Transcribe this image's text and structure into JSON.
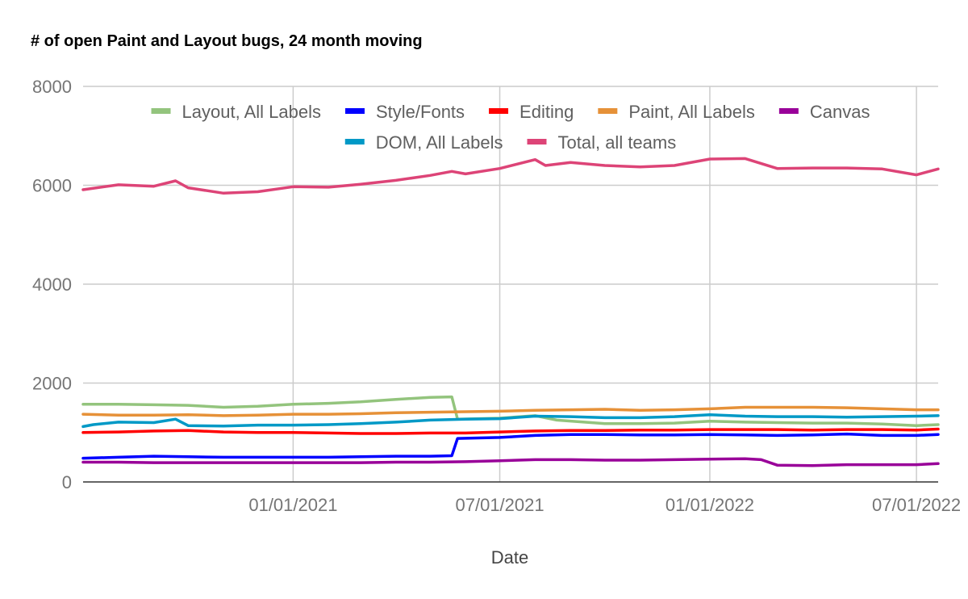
{
  "chart_data": {
    "type": "line",
    "title": "# of open Paint and Layout bugs, 24 month moving",
    "xlabel": "Date",
    "ylabel": "",
    "ylim": [
      0,
      8000
    ],
    "yticks": [
      0,
      2000,
      4000,
      6000,
      8000
    ],
    "xlim": [
      "2020-07-01",
      "2022-07-20"
    ],
    "xticks": [
      {
        "date": "2021-01-01",
        "label": "01/01/2021"
      },
      {
        "date": "2021-07-01",
        "label": "07/01/2021"
      },
      {
        "date": "2022-01-01",
        "label": "01/01/2022"
      },
      {
        "date": "2022-07-01",
        "label": "07/01/2022"
      }
    ],
    "grid": true,
    "legend_position": "top",
    "series": [
      {
        "name": "Layout, All Labels",
        "color": "#93c47d",
        "points": [
          [
            "2020-07-01",
            1570
          ],
          [
            "2020-08-01",
            1570
          ],
          [
            "2020-09-01",
            1560
          ],
          [
            "2020-10-01",
            1550
          ],
          [
            "2020-11-01",
            1510
          ],
          [
            "2020-12-01",
            1530
          ],
          [
            "2021-01-01",
            1570
          ],
          [
            "2021-02-01",
            1590
          ],
          [
            "2021-03-01",
            1620
          ],
          [
            "2021-04-01",
            1670
          ],
          [
            "2021-05-01",
            1710
          ],
          [
            "2021-05-20",
            1720
          ],
          [
            "2021-05-25",
            1270
          ],
          [
            "2021-07-01",
            1290
          ],
          [
            "2021-08-01",
            1340
          ],
          [
            "2021-08-20",
            1250
          ],
          [
            "2021-10-01",
            1180
          ],
          [
            "2021-11-01",
            1180
          ],
          [
            "2021-12-01",
            1190
          ],
          [
            "2022-01-01",
            1230
          ],
          [
            "2022-02-01",
            1210
          ],
          [
            "2022-03-01",
            1200
          ],
          [
            "2022-04-01",
            1190
          ],
          [
            "2022-05-01",
            1190
          ],
          [
            "2022-06-01",
            1170
          ],
          [
            "2022-07-01",
            1140
          ],
          [
            "2022-07-20",
            1160
          ]
        ]
      },
      {
        "name": "Style/Fonts",
        "color": "#0000ff",
        "points": [
          [
            "2020-07-01",
            480
          ],
          [
            "2020-08-01",
            500
          ],
          [
            "2020-09-01",
            520
          ],
          [
            "2020-10-01",
            510
          ],
          [
            "2020-11-01",
            500
          ],
          [
            "2020-12-01",
            500
          ],
          [
            "2021-01-01",
            500
          ],
          [
            "2021-02-01",
            500
          ],
          [
            "2021-03-01",
            510
          ],
          [
            "2021-04-01",
            520
          ],
          [
            "2021-05-01",
            520
          ],
          [
            "2021-05-20",
            530
          ],
          [
            "2021-05-25",
            880
          ],
          [
            "2021-07-01",
            900
          ],
          [
            "2021-08-01",
            940
          ],
          [
            "2021-09-01",
            960
          ],
          [
            "2021-10-01",
            960
          ],
          [
            "2021-11-01",
            950
          ],
          [
            "2021-12-01",
            950
          ],
          [
            "2022-01-01",
            960
          ],
          [
            "2022-02-01",
            950
          ],
          [
            "2022-03-01",
            940
          ],
          [
            "2022-04-01",
            950
          ],
          [
            "2022-05-01",
            970
          ],
          [
            "2022-06-01",
            940
          ],
          [
            "2022-07-01",
            940
          ],
          [
            "2022-07-20",
            960
          ]
        ]
      },
      {
        "name": "Editing",
        "color": "#ff0000",
        "points": [
          [
            "2020-07-01",
            1000
          ],
          [
            "2020-08-01",
            1010
          ],
          [
            "2020-09-01",
            1030
          ],
          [
            "2020-10-01",
            1040
          ],
          [
            "2020-11-01",
            1010
          ],
          [
            "2020-12-01",
            1000
          ],
          [
            "2021-01-01",
            1000
          ],
          [
            "2021-02-01",
            990
          ],
          [
            "2021-03-01",
            980
          ],
          [
            "2021-04-01",
            980
          ],
          [
            "2021-05-01",
            990
          ],
          [
            "2021-06-01",
            990
          ],
          [
            "2021-07-01",
            1010
          ],
          [
            "2021-08-01",
            1030
          ],
          [
            "2021-09-01",
            1040
          ],
          [
            "2021-10-01",
            1040
          ],
          [
            "2021-11-01",
            1050
          ],
          [
            "2021-12-01",
            1050
          ],
          [
            "2022-01-01",
            1060
          ],
          [
            "2022-02-01",
            1060
          ],
          [
            "2022-03-01",
            1060
          ],
          [
            "2022-04-01",
            1050
          ],
          [
            "2022-05-01",
            1060
          ],
          [
            "2022-06-01",
            1060
          ],
          [
            "2022-07-01",
            1050
          ],
          [
            "2022-07-20",
            1070
          ]
        ]
      },
      {
        "name": "Paint, All Labels",
        "color": "#e69138",
        "points": [
          [
            "2020-07-01",
            1370
          ],
          [
            "2020-08-01",
            1350
          ],
          [
            "2020-09-01",
            1350
          ],
          [
            "2020-10-01",
            1360
          ],
          [
            "2020-11-01",
            1340
          ],
          [
            "2020-12-01",
            1350
          ],
          [
            "2021-01-01",
            1370
          ],
          [
            "2021-02-01",
            1370
          ],
          [
            "2021-03-01",
            1380
          ],
          [
            "2021-04-01",
            1400
          ],
          [
            "2021-05-01",
            1410
          ],
          [
            "2021-06-01",
            1420
          ],
          [
            "2021-07-01",
            1430
          ],
          [
            "2021-08-01",
            1450
          ],
          [
            "2021-09-01",
            1460
          ],
          [
            "2021-10-01",
            1470
          ],
          [
            "2021-11-01",
            1450
          ],
          [
            "2021-12-01",
            1460
          ],
          [
            "2022-01-01",
            1480
          ],
          [
            "2022-02-01",
            1510
          ],
          [
            "2022-03-01",
            1510
          ],
          [
            "2022-04-01",
            1510
          ],
          [
            "2022-05-01",
            1500
          ],
          [
            "2022-06-01",
            1480
          ],
          [
            "2022-07-01",
            1460
          ],
          [
            "2022-07-20",
            1460
          ]
        ]
      },
      {
        "name": "Canvas",
        "color": "#990099",
        "points": [
          [
            "2020-07-01",
            400
          ],
          [
            "2020-08-01",
            400
          ],
          [
            "2020-09-01",
            390
          ],
          [
            "2020-10-01",
            390
          ],
          [
            "2020-11-01",
            390
          ],
          [
            "2020-12-01",
            390
          ],
          [
            "2021-01-01",
            390
          ],
          [
            "2021-02-01",
            390
          ],
          [
            "2021-03-01",
            390
          ],
          [
            "2021-04-01",
            400
          ],
          [
            "2021-05-01",
            400
          ],
          [
            "2021-06-01",
            410
          ],
          [
            "2021-07-01",
            430
          ],
          [
            "2021-08-01",
            450
          ],
          [
            "2021-09-01",
            450
          ],
          [
            "2021-10-01",
            440
          ],
          [
            "2021-11-01",
            440
          ],
          [
            "2021-12-01",
            450
          ],
          [
            "2022-01-01",
            460
          ],
          [
            "2022-02-01",
            470
          ],
          [
            "2022-02-15",
            450
          ],
          [
            "2022-03-01",
            340
          ],
          [
            "2022-04-01",
            330
          ],
          [
            "2022-05-01",
            350
          ],
          [
            "2022-06-01",
            350
          ],
          [
            "2022-07-01",
            350
          ],
          [
            "2022-07-20",
            370
          ]
        ]
      },
      {
        "name": "DOM, All Labels",
        "color": "#0099c6",
        "points": [
          [
            "2020-07-01",
            1120
          ],
          [
            "2020-07-10",
            1160
          ],
          [
            "2020-08-01",
            1210
          ],
          [
            "2020-09-01",
            1200
          ],
          [
            "2020-09-20",
            1270
          ],
          [
            "2020-10-01",
            1140
          ],
          [
            "2020-11-01",
            1130
          ],
          [
            "2020-12-01",
            1150
          ],
          [
            "2021-01-01",
            1150
          ],
          [
            "2021-02-01",
            1160
          ],
          [
            "2021-03-01",
            1180
          ],
          [
            "2021-04-01",
            1210
          ],
          [
            "2021-05-01",
            1250
          ],
          [
            "2021-06-01",
            1270
          ],
          [
            "2021-07-01",
            1280
          ],
          [
            "2021-08-01",
            1330
          ],
          [
            "2021-09-01",
            1320
          ],
          [
            "2021-10-01",
            1300
          ],
          [
            "2021-11-01",
            1300
          ],
          [
            "2021-12-01",
            1320
          ],
          [
            "2022-01-01",
            1360
          ],
          [
            "2022-02-01",
            1330
          ],
          [
            "2022-03-01",
            1320
          ],
          [
            "2022-04-01",
            1320
          ],
          [
            "2022-05-01",
            1310
          ],
          [
            "2022-06-01",
            1320
          ],
          [
            "2022-07-01",
            1330
          ],
          [
            "2022-07-20",
            1340
          ]
        ]
      },
      {
        "name": "Total, all teams",
        "color": "#dd4477",
        "points": [
          [
            "2020-07-01",
            5910
          ],
          [
            "2020-08-01",
            6010
          ],
          [
            "2020-09-01",
            5980
          ],
          [
            "2020-09-20",
            6090
          ],
          [
            "2020-10-01",
            5950
          ],
          [
            "2020-11-01",
            5840
          ],
          [
            "2020-12-01",
            5870
          ],
          [
            "2021-01-01",
            5970
          ],
          [
            "2021-02-01",
            5960
          ],
          [
            "2021-03-01",
            6020
          ],
          [
            "2021-04-01",
            6100
          ],
          [
            "2021-05-01",
            6200
          ],
          [
            "2021-05-20",
            6280
          ],
          [
            "2021-06-01",
            6230
          ],
          [
            "2021-07-01",
            6340
          ],
          [
            "2021-08-01",
            6520
          ],
          [
            "2021-08-10",
            6400
          ],
          [
            "2021-09-01",
            6460
          ],
          [
            "2021-10-01",
            6400
          ],
          [
            "2021-11-01",
            6370
          ],
          [
            "2021-12-01",
            6400
          ],
          [
            "2022-01-01",
            6530
          ],
          [
            "2022-02-01",
            6540
          ],
          [
            "2022-03-01",
            6340
          ],
          [
            "2022-04-01",
            6350
          ],
          [
            "2022-05-01",
            6350
          ],
          [
            "2022-06-01",
            6330
          ],
          [
            "2022-07-01",
            6210
          ],
          [
            "2022-07-20",
            6330
          ]
        ]
      }
    ]
  }
}
